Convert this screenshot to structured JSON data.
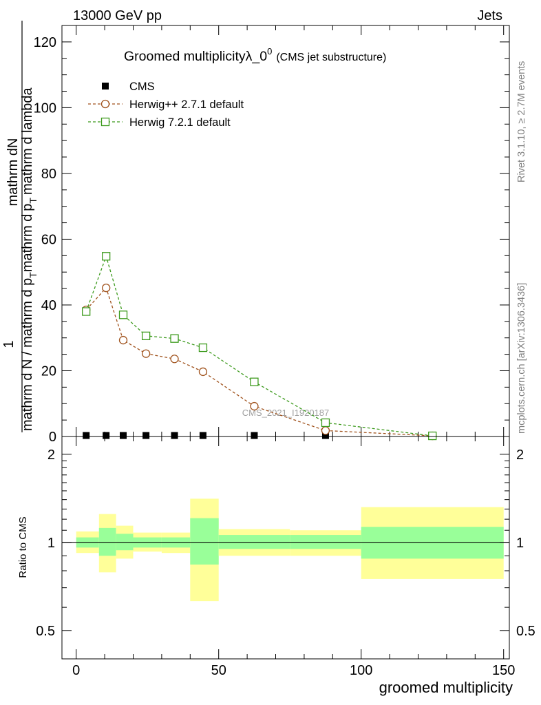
{
  "header": {
    "energy_label": "13000 GeV pp",
    "category_label": "Jets"
  },
  "side_labels": {
    "rivet": "Rivet 3.1.10, ≥ 2.7M events",
    "mcplots": "mcplots.cern.ch [arXiv:1306.3436]"
  },
  "watermark": "CMS_2021_I1920187",
  "chart_data": [
    {
      "type": "line",
      "title": "Groomed multiplicityλ_0",
      "title_superscript": "0",
      "subtitle": "(CMS jet substructure)",
      "ylabel_numerator": "mathrm dN",
      "ylabel_denominator": "mathrm d N / mathrm d p",
      "ylabel_one": "1",
      "ylabel_num_prefix": "mathrm d",
      "ylabel_num_pt": "p",
      "ylabel_num_mid": "mathrm d",
      "ylabel_num_sub": "T",
      "ylabel_num_tail": "mathrm d lambda",
      "xlim": [
        -5,
        152
      ],
      "ylim": [
        0,
        125
      ],
      "yticks": [
        0,
        20,
        40,
        60,
        80,
        100,
        120
      ],
      "legend_position": "top-left",
      "series": [
        {
          "name": "CMS",
          "marker": "filled-square",
          "color": "#000000",
          "x": [
            3.5,
            10.5,
            16.5,
            24.5,
            34.5,
            44.5,
            62.5,
            87.5,
            125
          ],
          "y": [
            0.3,
            0.3,
            0.3,
            0.3,
            0.3,
            0.3,
            0.3,
            0.3,
            0.3
          ]
        },
        {
          "name": "Herwig++ 2.7.1 default",
          "marker": "open-circle",
          "color": "#a0521c",
          "x": [
            3.5,
            10.5,
            16.5,
            24.5,
            34.5,
            44.5,
            62.5,
            87.5,
            125
          ],
          "y": [
            38.5,
            45.2,
            29.3,
            25.2,
            23.6,
            19.7,
            9.2,
            1.8,
            0.2
          ]
        },
        {
          "name": "Herwig 7.2.1 default",
          "marker": "open-square",
          "color": "#3c9a1c",
          "x": [
            3.5,
            10.5,
            16.5,
            24.5,
            34.5,
            44.5,
            62.5,
            87.5,
            125
          ],
          "y": [
            38.0,
            54.8,
            37.0,
            30.6,
            29.8,
            27.0,
            16.6,
            4.2,
            0.2
          ]
        }
      ]
    },
    {
      "type": "area",
      "ylabel": "Ratio to CMS",
      "xlabel": "groomed multiplicity",
      "xlim": [
        -5,
        152
      ],
      "ylim": [
        0.4,
        2.3
      ],
      "xticks": [
        0,
        50,
        100,
        150
      ],
      "yticks": [
        0.5,
        1,
        2
      ],
      "reference_line": 1,
      "band_colors": {
        "inner": "#99ff99",
        "outer": "#ffff99"
      },
      "bins": [
        {
          "x0": 0,
          "x1": 8,
          "inner": [
            0.96,
            1.04
          ],
          "outer": [
            0.92,
            1.09
          ]
        },
        {
          "x0": 8,
          "x1": 14,
          "inner": [
            0.9,
            1.12
          ],
          "outer": [
            0.79,
            1.25
          ]
        },
        {
          "x0": 14,
          "x1": 20,
          "inner": [
            0.94,
            1.07
          ],
          "outer": [
            0.88,
            1.14
          ]
        },
        {
          "x0": 20,
          "x1": 30,
          "inner": [
            0.96,
            1.04
          ],
          "outer": [
            0.93,
            1.08
          ]
        },
        {
          "x0": 30,
          "x1": 40,
          "inner": [
            0.96,
            1.04
          ],
          "outer": [
            0.92,
            1.08
          ]
        },
        {
          "x0": 40,
          "x1": 50,
          "inner": [
            0.84,
            1.21
          ],
          "outer": [
            0.63,
            1.41
          ]
        },
        {
          "x0": 50,
          "x1": 75,
          "inner": [
            0.95,
            1.06
          ],
          "outer": [
            0.9,
            1.11
          ]
        },
        {
          "x0": 75,
          "x1": 100,
          "inner": [
            0.95,
            1.06
          ],
          "outer": [
            0.9,
            1.1
          ]
        },
        {
          "x0": 100,
          "x1": 150,
          "inner": [
            0.88,
            1.13
          ],
          "outer": [
            0.75,
            1.32
          ]
        }
      ]
    }
  ]
}
